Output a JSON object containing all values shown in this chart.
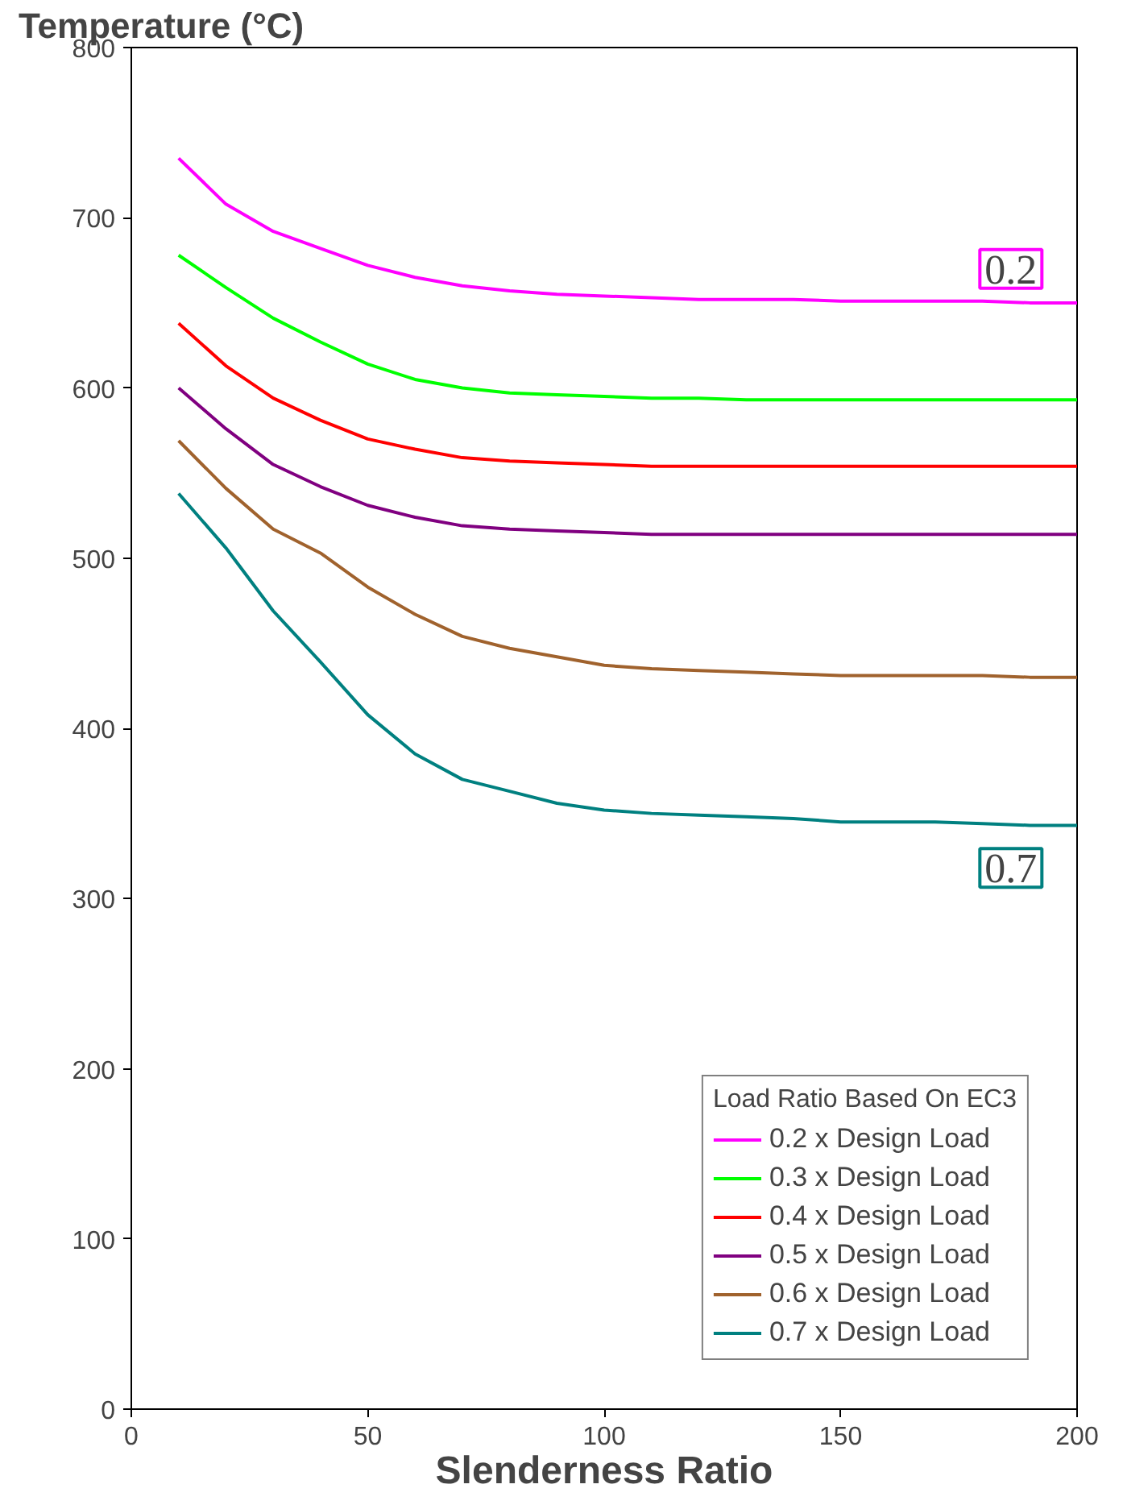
{
  "chart_data": {
    "type": "line",
    "xlabel": "Slenderness Ratio",
    "ylabel": "Temperature (°C)",
    "legend_title": "Load Ratio Based On EC3",
    "x": [
      10,
      20,
      30,
      40,
      50,
      60,
      70,
      80,
      90,
      100,
      110,
      120,
      130,
      140,
      150,
      160,
      170,
      180,
      190,
      200
    ],
    "xlim": [
      0,
      200
    ],
    "xticks": [
      0,
      50,
      100,
      150,
      200
    ],
    "ylim": [
      0,
      800
    ],
    "yticks": [
      0,
      100,
      200,
      300,
      400,
      500,
      600,
      700,
      800
    ],
    "grid": false,
    "legend": "bottom right",
    "marker": "none",
    "line_style": "solid",
    "series": [
      {
        "name": "0.2 x Design Load",
        "color": "#ff00ff",
        "values": [
          735,
          708,
          692,
          682,
          672,
          665,
          660,
          657,
          655,
          654,
          653,
          652,
          652,
          652,
          651,
          651,
          651,
          651,
          650,
          650
        ]
      },
      {
        "name": "0.3 x Design Load",
        "color": "#00ff00",
        "values": [
          678,
          659,
          641,
          627,
          614,
          605,
          600,
          597,
          596,
          595,
          594,
          594,
          593,
          593,
          593,
          593,
          593,
          593,
          593,
          593
        ]
      },
      {
        "name": "0.4 x Design Load",
        "color": "#ff0000",
        "values": [
          638,
          613,
          594,
          581,
          570,
          564,
          559,
          557,
          556,
          555,
          554,
          554,
          554,
          554,
          554,
          554,
          554,
          554,
          554,
          554
        ]
      },
      {
        "name": "0.5 x Design Load",
        "color": "#800080",
        "values": [
          600,
          576,
          555,
          542,
          531,
          524,
          519,
          517,
          516,
          515,
          514,
          514,
          514,
          514,
          514,
          514,
          514,
          514,
          514,
          514
        ]
      },
      {
        "name": "0.6 x Design Load",
        "color": "#a0622d",
        "values": [
          569,
          541,
          517,
          503,
          483,
          467,
          454,
          447,
          442,
          437,
          435,
          434,
          433,
          432,
          431,
          431,
          431,
          431,
          430,
          430
        ]
      },
      {
        "name": "0.7 x Design Load",
        "color": "#008080",
        "values": [
          538,
          506,
          469,
          439,
          408,
          385,
          370,
          363,
          356,
          352,
          350,
          349,
          348,
          347,
          345,
          345,
          345,
          344,
          343,
          343
        ]
      }
    ],
    "annotations": [
      {
        "text": "0.2",
        "x": 186,
        "y": 670
      },
      {
        "text": "0.7",
        "x": 186,
        "y": 318
      }
    ]
  }
}
